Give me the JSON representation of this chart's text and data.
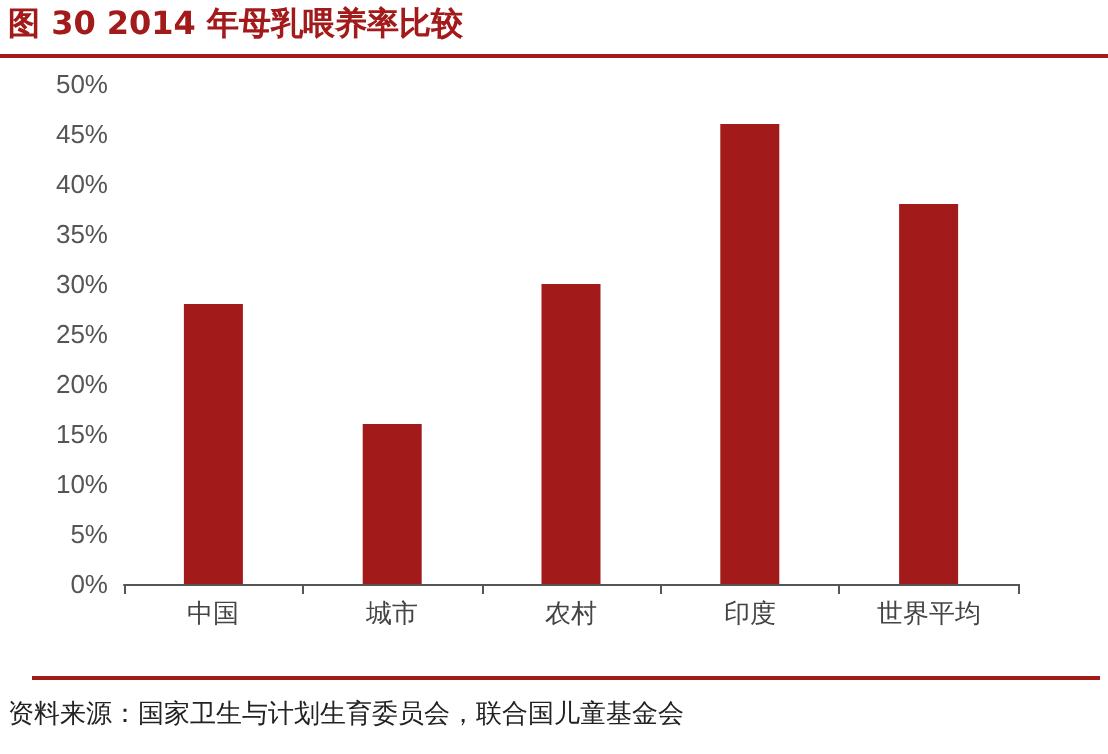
{
  "chart_data": {
    "type": "bar",
    "title": "图 30 2014 年母乳喂养率比较",
    "categories": [
      "中国",
      "城市",
      "农村",
      "印度",
      "世界平均"
    ],
    "values": [
      28,
      16,
      30,
      46,
      38
    ],
    "color": "#a31a1a",
    "ylim": [
      0,
      50
    ],
    "yticks": [
      {
        "value": 0,
        "label": "0%"
      },
      {
        "value": 5,
        "label": "5%"
      },
      {
        "value": 10,
        "label": "10%"
      },
      {
        "value": 15,
        "label": "15%"
      },
      {
        "value": 20,
        "label": "20%"
      },
      {
        "value": 25,
        "label": "25%"
      },
      {
        "value": 30,
        "label": "30%"
      },
      {
        "value": 35,
        "label": "35%"
      },
      {
        "value": 40,
        "label": "40%"
      },
      {
        "value": 45,
        "label": "45%"
      },
      {
        "value": 50,
        "label": "50%"
      }
    ],
    "grid": false,
    "annotations": [
      "资料来源：国家卫生与计划生育委员会，联合国儿童基金会"
    ]
  }
}
